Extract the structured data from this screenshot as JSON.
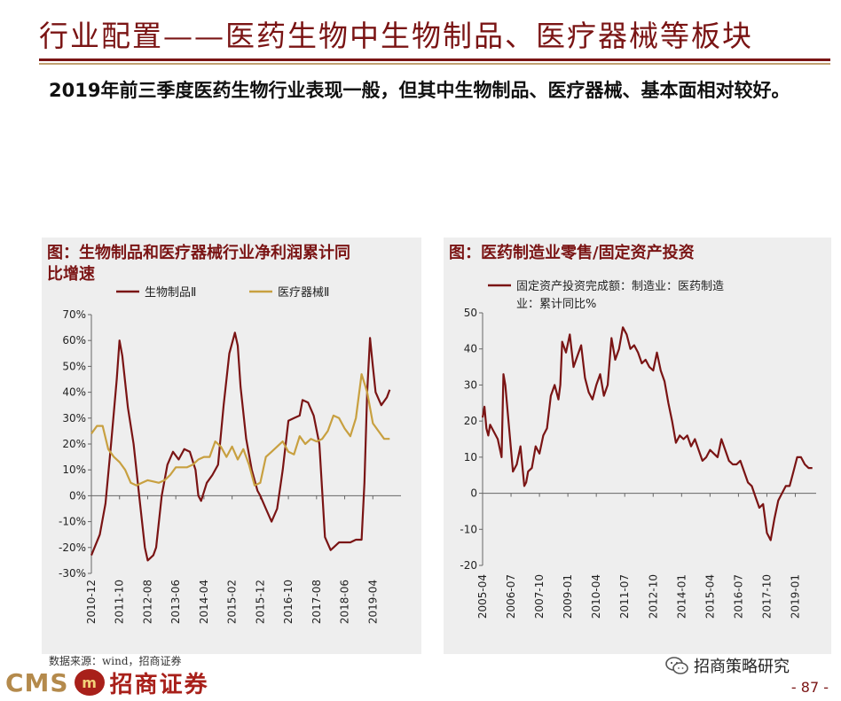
{
  "page": {
    "title": "行业配置——医药生物中生物制品、医疗器械等板块",
    "intro": "2019年前三季度医药生物行业表现一般，但其中生物制品、医疗器械、基本面相对较好。",
    "source": "数据来源：wind，招商证券",
    "logo_en": "CMS",
    "logo_badge": "m",
    "logo_cn": "招商证券",
    "wechat_label": "招商策略研究",
    "page_number": "- 87 -"
  },
  "colors": {
    "dark_red": "#7a1414",
    "gold": "#c8a040",
    "panel_bg": "#eeeeee"
  },
  "icons": [
    "wechat-icon"
  ],
  "chart_data": [
    {
      "type": "line",
      "title": "图：生物制品和医疗器械行业净利润累计同比增速",
      "title_lines": [
        "图：生物制品和医疗器械行业净利润累计同",
        "比增速"
      ],
      "legend_position": "top",
      "y_unit": "%",
      "ylim": [
        -30,
        70
      ],
      "y_ticks": [
        -30,
        -20,
        -10,
        0,
        10,
        20,
        30,
        40,
        50,
        60,
        70
      ],
      "y_tick_labels": [
        "-30%",
        "-20%",
        "-10%",
        "0%",
        "10%",
        "20%",
        "30%",
        "40%",
        "50%",
        "60%",
        "70%"
      ],
      "x_ticks": [
        "2010-12",
        "2011-10",
        "2012-08",
        "2013-06",
        "2014-04",
        "2015-02",
        "2015-12",
        "2016-10",
        "2017-08",
        "2018-06",
        "2019-04"
      ],
      "xlim": [
        0,
        110
      ],
      "x_tick_positions": [
        0,
        10,
        20,
        30,
        40,
        50,
        60,
        70,
        80,
        90,
        100
      ],
      "series": [
        {
          "name": "生物制品Ⅱ",
          "color": "#7a1414",
          "x": [
            0,
            3,
            5,
            7,
            9,
            10,
            11,
            13,
            15,
            17,
            19,
            20,
            22,
            23,
            25,
            27,
            29,
            31,
            33,
            35,
            37,
            38,
            39,
            41,
            43,
            45,
            47,
            49,
            51,
            52,
            53,
            55,
            57,
            59,
            60,
            62,
            64,
            66,
            68,
            70,
            72,
            74,
            75,
            77,
            79,
            81,
            83,
            85,
            86,
            87,
            88,
            90,
            92,
            94,
            96,
            97,
            98,
            99,
            100,
            101,
            103,
            105,
            106
          ],
          "y": [
            -23,
            -15,
            -3,
            20,
            45,
            60,
            54,
            34,
            20,
            0,
            -20,
            -25,
            -23,
            -20,
            0,
            12,
            17,
            14,
            18,
            17,
            10,
            0,
            -2,
            5,
            8,
            12,
            35,
            55,
            63,
            58,
            42,
            22,
            10,
            2,
            0,
            -5,
            -10,
            -5,
            10,
            29,
            30,
            31,
            37,
            36,
            31,
            20,
            -16,
            -21,
            -20,
            -19,
            -18,
            -18,
            -18,
            -17,
            -17,
            5,
            40,
            61,
            50,
            40,
            35,
            38,
            41
          ]
        },
        {
          "name": "医疗器械Ⅱ",
          "color": "#c8a040",
          "x": [
            0,
            2,
            4,
            6,
            8,
            10,
            12,
            14,
            16,
            18,
            20,
            22,
            24,
            26,
            28,
            30,
            32,
            34,
            36,
            38,
            40,
            42,
            44,
            46,
            48,
            50,
            52,
            54,
            56,
            58,
            60,
            62,
            64,
            66,
            68,
            70,
            72,
            74,
            76,
            78,
            80,
            82,
            84,
            86,
            88,
            90,
            92,
            94,
            96,
            98,
            99,
            100,
            102,
            104,
            106
          ],
          "y": [
            24,
            27,
            27,
            18,
            15,
            13,
            10,
            5,
            4,
            5,
            6,
            5.5,
            5,
            6,
            8,
            11,
            11,
            11,
            12,
            14,
            15,
            15,
            21,
            19,
            15,
            19,
            14,
            18,
            12,
            4,
            5,
            15,
            17,
            19,
            21,
            17,
            16,
            23,
            20,
            22,
            21,
            22,
            25,
            31,
            30,
            26,
            23,
            30,
            47,
            40,
            34,
            28,
            25,
            22,
            22
          ]
        }
      ]
    },
    {
      "type": "line",
      "title": "图：医药制造业零售/固定资产投资",
      "legend_position": "top",
      "ylim": [
        -20,
        50
      ],
      "y_ticks": [
        -20,
        -10,
        0,
        10,
        20,
        30,
        40,
        50
      ],
      "x_ticks": [
        "2005-04",
        "2006-07",
        "2007-10",
        "2009-01",
        "2010-04",
        "2011-07",
        "2012-10",
        "2014-01",
        "2015-04",
        "2016-07",
        "2017-10",
        "2019-01"
      ],
      "xlim": [
        0,
        176
      ],
      "x_tick_positions": [
        0,
        15,
        30,
        45,
        60,
        75,
        90,
        105,
        120,
        135,
        150,
        165
      ],
      "series": [
        {
          "name": "固定资产投资完成额：制造业：医药制造业：累计同比%",
          "legend_lines": [
            "固定资产投资完成额：制造业：医药制造",
            "业：累计同比%"
          ],
          "color": "#7a1414",
          "x": [
            0,
            1,
            2,
            3,
            4,
            6,
            8,
            10,
            11,
            12,
            14,
            16,
            18,
            20,
            22,
            23,
            24,
            26,
            28,
            30,
            32,
            34,
            36,
            38,
            40,
            41,
            42,
            44,
            46,
            48,
            50,
            52,
            54,
            56,
            58,
            60,
            62,
            64,
            66,
            68,
            70,
            72,
            74,
            76,
            78,
            80,
            82,
            84,
            86,
            88,
            90,
            92,
            94,
            96,
            98,
            100,
            102,
            104,
            106,
            108,
            110,
            112,
            114,
            116,
            118,
            120,
            122,
            124,
            126,
            128,
            130,
            132,
            134,
            136,
            138,
            140,
            142,
            144,
            146,
            148,
            150,
            152,
            154,
            156,
            158,
            160,
            162,
            164,
            166,
            168,
            170,
            172,
            174
          ],
          "y": [
            21,
            24,
            18,
            16,
            19,
            17,
            15,
            10,
            33,
            30,
            18,
            6,
            8,
            13,
            2,
            3,
            6,
            7,
            13,
            11,
            16,
            18,
            27,
            30,
            26,
            30,
            42,
            39,
            44,
            35,
            38,
            41,
            32,
            28,
            26,
            30,
            33,
            27,
            30,
            43,
            37,
            40,
            46,
            44,
            40,
            41,
            39,
            36,
            37,
            35,
            34,
            39,
            34,
            31,
            25,
            20,
            14,
            16,
            15,
            16,
            13,
            15,
            12,
            9,
            10,
            12,
            11,
            10,
            15,
            12,
            9,
            8,
            8,
            9,
            6,
            3,
            2,
            -1,
            -4,
            -3,
            -11,
            -13,
            -7,
            -2,
            0,
            2,
            2,
            6,
            10,
            10,
            8,
            7,
            7
          ]
        }
      ]
    }
  ]
}
